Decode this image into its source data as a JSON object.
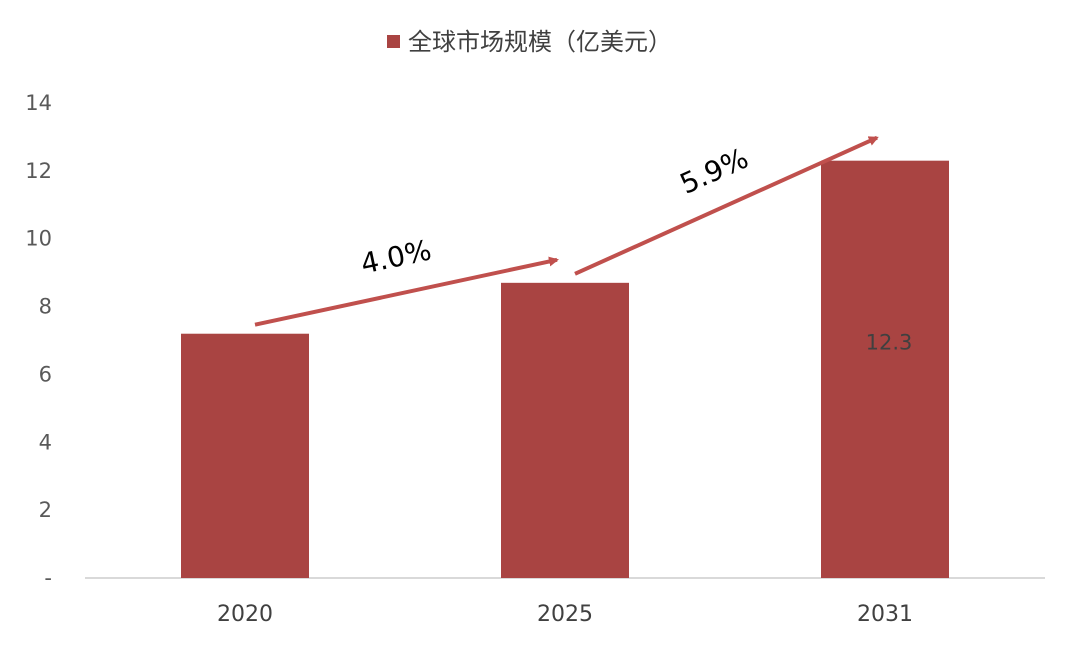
{
  "chart_data": {
    "type": "bar",
    "categories": [
      "2020",
      "2025",
      "2031"
    ],
    "series": [
      {
        "name": "全球市场规模（亿美元）",
        "values": [
          7.2,
          8.7,
          12.3
        ],
        "color": "#A94442"
      }
    ],
    "data_labels": [
      "",
      "",
      "12.3"
    ],
    "legend": {
      "label": "全球市场规模（亿美元）",
      "position": "top"
    },
    "y_ticks": [
      "-",
      "2",
      "4",
      "6",
      "8",
      "10",
      "12",
      "14"
    ],
    "ylim": [
      0,
      14
    ],
    "growth_annotations": [
      {
        "label": "4.0%",
        "from": "2020",
        "to": "2025",
        "arrow_color": "#C0504D"
      },
      {
        "label": "5.9%",
        "from": "2025",
        "to": "2031",
        "arrow_color": "#C0504D"
      }
    ],
    "title": "",
    "xlabel": "",
    "ylabel": "",
    "grid": false
  }
}
